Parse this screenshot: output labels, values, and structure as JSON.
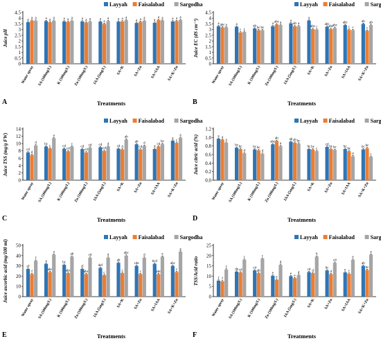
{
  "figure": {
    "categories": [
      "Water spray",
      "SA (100mg/L)",
      "K (100mg/L)",
      "Zn (100mg/L)",
      "IAA (5mg/L)",
      "SA+K",
      "SA+Zn",
      "SA+IAA",
      "SA+K+Zn"
    ],
    "series_names": [
      "Layyah",
      "Faisalabad",
      "Sargodha"
    ],
    "colors": {
      "Layyah": "#2e75b6",
      "Faisalabad": "#ed7d31",
      "Sargodha": "#a5a5a5"
    },
    "xlabel": "Treatments"
  },
  "chart_data": [
    {
      "type": "bar",
      "panel": "A",
      "ylabel": "Juice pH",
      "ylim": [
        0,
        4.5
      ],
      "yticks": [
        0,
        0.5,
        1,
        1.5,
        2,
        2.5,
        3,
        3.5,
        4,
        4.5
      ],
      "xlabel": "Treatments",
      "categories": [
        "Water spray",
        "SA (100mg/L)",
        "K (100mg/L)",
        "Zn (100mg/L)",
        "IAA (5mg/L)",
        "SA+K",
        "SA+Zn",
        "SA+IAA",
        "SA+K+Zn"
      ],
      "series": [
        {
          "name": "Layyah",
          "values": [
            3.65,
            3.75,
            3.72,
            3.72,
            3.7,
            3.7,
            3.58,
            3.6,
            3.72
          ]
        },
        {
          "name": "Faisalabad",
          "values": [
            3.8,
            3.65,
            3.68,
            3.62,
            3.5,
            3.72,
            3.68,
            3.85,
            3.75
          ]
        },
        {
          "name": "Sargodha",
          "values": [
            3.78,
            3.78,
            3.78,
            3.7,
            3.75,
            3.82,
            3.78,
            3.8,
            3.85
          ]
        }
      ],
      "labels": [
        [
          "a",
          "a",
          "a"
        ],
        [
          "a",
          "a",
          "a"
        ],
        [
          "a",
          "a",
          "a"
        ],
        [
          "a",
          "a",
          "a"
        ],
        [
          "a",
          "a",
          "a"
        ],
        [
          "a",
          "a",
          "a"
        ],
        [
          "a",
          "a",
          "a"
        ],
        [
          "a",
          "a",
          "a"
        ],
        [
          "a",
          "a",
          "a"
        ]
      ]
    },
    {
      "type": "bar",
      "panel": "B",
      "ylabel": "Juice EC (dS cm⁻¹)",
      "ylim": [
        0,
        4.5
      ],
      "yticks": [
        0,
        0.5,
        1,
        1.5,
        2,
        2.5,
        3,
        3.5,
        4,
        4.5
      ],
      "xlabel": "Treatments",
      "categories": [
        "Water spray",
        "SA (100mg/L)",
        "K (100mg/L)",
        "Zn (100mg/L)",
        "IAA (5mg/L)",
        "SA+K",
        "SA+Zn",
        "SA+IAA",
        "SA+K+Zn"
      ],
      "series": [
        {
          "name": "Layyah",
          "values": [
            3.3,
            3.25,
            3.1,
            3.3,
            3.55,
            3.8,
            3.25,
            3.4,
            3.5
          ]
        },
        {
          "name": "Faisalabad",
          "values": [
            3.2,
            2.75,
            2.95,
            3.45,
            3.3,
            3.05,
            3.05,
            3.0,
            2.9
          ]
        },
        {
          "name": "Sargodha",
          "values": [
            3.2,
            2.8,
            2.95,
            3.4,
            3.3,
            3.0,
            3.15,
            2.95,
            3.4
          ]
        }
      ],
      "labels": [
        [
          "a",
          "abc",
          "a"
        ],
        [
          "a",
          "c",
          "c"
        ],
        [
          "ab",
          "bc",
          "bc"
        ],
        [
          "a",
          "abc",
          "a"
        ],
        [
          "a",
          "ab",
          "a"
        ],
        [
          "a",
          "abc",
          "c"
        ],
        [
          "abc",
          "abc",
          "abc"
        ],
        [
          "abc",
          "c",
          "c"
        ],
        [
          "ab",
          "c",
          "ab"
        ]
      ]
    },
    {
      "type": "bar",
      "panel": "C",
      "ylabel": "Juice TSS (mg/g FW)",
      "ylim": [
        0,
        14
      ],
      "yticks": [
        0,
        2,
        4,
        6,
        8,
        10,
        12,
        14
      ],
      "xlabel": "Treatments",
      "categories": [
        "Water spray",
        "SA (100mg/L)",
        "K (100mg/L)",
        "Zn (100mg/L)",
        "IAA (5mg/L)",
        "SA+K",
        "SA+Zn",
        "SA+IAA",
        "SA+K+Zn"
      ],
      "series": [
        {
          "name": "Layyah",
          "values": [
            7.6,
            9.2,
            8.6,
            8.5,
            9.0,
            8.6,
            9.8,
            8.5,
            10.8
          ]
        },
        {
          "name": "Faisalabad",
          "values": [
            6.9,
            8.7,
            7.9,
            7.6,
            8.0,
            8.4,
            8.4,
            9.2,
            10.2
          ]
        },
        {
          "name": "Sargodha",
          "values": [
            9.5,
            11.5,
            9.2,
            8.9,
            9.2,
            11.1,
            9.4,
            9.9,
            11.6
          ]
        }
      ],
      "labels": [
        [
          "cd",
          "d",
          "d"
        ],
        [
          "bc",
          "c",
          "a"
        ],
        [
          "cd",
          "cd",
          "c"
        ],
        [
          "cd",
          "cd",
          "cd"
        ],
        [
          "cd",
          "cd",
          "d"
        ],
        [
          "cd",
          "d",
          "ab"
        ],
        [
          "ab",
          "cd",
          "d"
        ],
        [
          "d",
          "cd",
          "bc"
        ],
        [
          "a",
          "c",
          "a"
        ]
      ]
    },
    {
      "type": "bar",
      "panel": "D",
      "ylabel": "Juice citric acid (%)",
      "ylim": [
        0,
        1.2
      ],
      "yticks": [
        0,
        0.2,
        0.4,
        0.6,
        0.8,
        1.0,
        1.2
      ],
      "xlabel": "Treatments",
      "categories": [
        "Water spray",
        "SA (100mg/L)",
        "K (100mg/L)",
        "Zn (100mg/L)",
        "IAA (5mg/L)",
        "SA+K",
        "SA+Zn",
        "SA+IAA",
        "SA+K+Zn"
      ],
      "series": [
        {
          "name": "Layyah",
          "values": [
            0.97,
            0.76,
            0.72,
            0.84,
            0.9,
            0.73,
            0.78,
            0.73,
            0.72
          ]
        },
        {
          "name": "Faisalabad",
          "values": [
            0.95,
            0.73,
            0.7,
            0.92,
            0.88,
            0.72,
            0.73,
            0.68,
            0.75
          ]
        },
        {
          "name": "Sargodha",
          "values": [
            0.88,
            0.63,
            0.62,
            0.8,
            0.86,
            0.68,
            0.71,
            0.56,
            0.55
          ]
        }
      ],
      "labels": [
        [
          "a",
          "a",
          "a"
        ],
        [
          "bc",
          "bc",
          "d"
        ],
        [
          "bc",
          "bc",
          "d"
        ],
        [
          "abc",
          "ab",
          "a"
        ],
        [
          "ab",
          "ab",
          "bc"
        ],
        [
          "bc",
          "bc",
          "c"
        ],
        [
          "cd",
          "bc",
          "bc"
        ],
        [
          "bc",
          "bc",
          "d"
        ],
        [
          "bc",
          "bc",
          "c"
        ]
      ]
    },
    {
      "type": "bar",
      "panel": "E",
      "ylabel": "Juice ascorbic acid (mg/100 ml)",
      "ylim": [
        0,
        50
      ],
      "yticks": [
        0,
        10,
        20,
        30,
        40,
        50
      ],
      "xlabel": "Treatments",
      "categories": [
        "Water spray",
        "SA (100mg/L)",
        "K (100mg/L)",
        "Zn (100mg/L)",
        "IAA (5mg/L)",
        "SA+K",
        "SA+Zn",
        "SA+IAA",
        "SA+K+Zn"
      ],
      "series": [
        {
          "name": "Layyah",
          "values": [
            27,
            32,
            31,
            27,
            28,
            33,
            30,
            32,
            30
          ]
        },
        {
          "name": "Faisalabad",
          "values": [
            22,
            24,
            23,
            22,
            21,
            23,
            22,
            22,
            24
          ]
        },
        {
          "name": "Sargodha",
          "values": [
            35,
            41,
            39,
            38,
            38,
            40,
            38,
            39,
            44
          ]
        }
      ],
      "labels": [
        [
          "ef",
          "f",
          "f"
        ],
        [
          "a",
          "abc",
          "a"
        ],
        [
          "bc",
          "abc",
          "ab"
        ],
        [
          "cf",
          "abc",
          "cd"
        ],
        [
          "def",
          "c",
          "d"
        ],
        [
          "ab",
          "c",
          "abc"
        ],
        [
          "cde",
          "c",
          "d"
        ],
        [
          "bcd",
          "abc",
          "e"
        ],
        [
          "abc",
          "c",
          "a"
        ]
      ]
    },
    {
      "type": "bar",
      "panel": "F",
      "ylabel": "TSS/Acid ratio",
      "ylim": [
        0,
        25
      ],
      "yticks": [
        0,
        5,
        10,
        15,
        20,
        25
      ],
      "xlabel": "Treatments",
      "categories": [
        "Water spray",
        "SA (100mg/L)",
        "K (100mg/L)",
        "Zn (100mg/L)",
        "IAA (5mg/L)",
        "SA+K",
        "SA+Zn",
        "SA+IAA",
        "SA+K+Zn"
      ],
      "series": [
        {
          "name": "Layyah",
          "values": [
            7.8,
            12.2,
            12.8,
            10.2,
            10.0,
            12.0,
            12.8,
            11.8,
            15.0
          ]
        },
        {
          "name": "Faisalabad",
          "values": [
            7.5,
            11.8,
            11.5,
            8.2,
            9.0,
            11.5,
            11.0,
            11.2,
            13.0
          ]
        },
        {
          "name": "Sargodha",
          "values": [
            13.2,
            18.0,
            18.5,
            15.5,
            10.5,
            19.5,
            16.5,
            18.0,
            20.5
          ]
        }
      ],
      "labels": [
        [
          "f",
          "f",
          "f"
        ],
        [
          "de",
          "cd",
          "c"
        ],
        [
          "cd",
          "ab",
          "c"
        ],
        [
          "e",
          "e",
          "d"
        ],
        [
          "e",
          "e",
          "d"
        ],
        [
          "cd",
          "d",
          "b"
        ],
        [
          "bc",
          "d",
          "cd"
        ],
        [
          "e",
          "c",
          "e"
        ],
        [
          "ab",
          "bc",
          "a"
        ]
      ]
    }
  ]
}
